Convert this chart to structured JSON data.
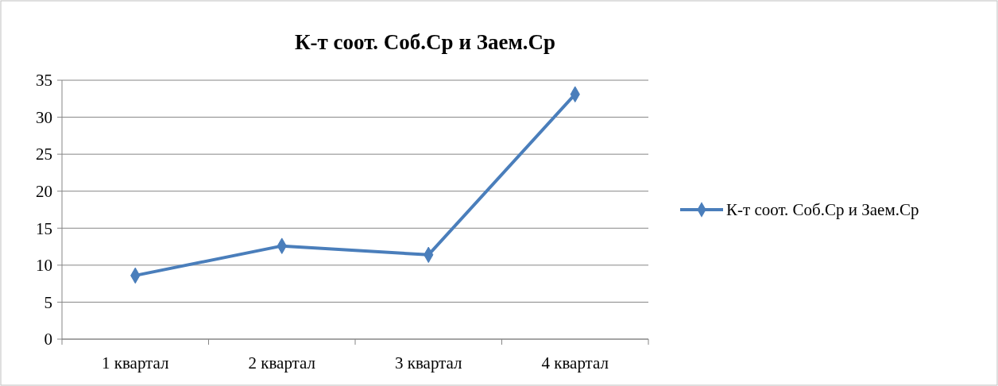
{
  "chart_data": {
    "type": "line",
    "title": "К-т соот. Соб.Ср и Заем.Ср",
    "categories": [
      "1 квартал",
      "2 квартал",
      "3 квартал",
      "4 квартал"
    ],
    "series": [
      {
        "name": "К-т соот. Соб.Ср и Заем.Ср",
        "color": "#4a7ebb",
        "values": [
          8.6,
          12.6,
          11.4,
          33.1
        ]
      }
    ],
    "ylim": [
      0,
      35
    ],
    "yticks": [
      0,
      5,
      10,
      15,
      20,
      25,
      30,
      35
    ],
    "grid": "y",
    "legend": "right",
    "marker": "diamond",
    "line_style": "solid"
  }
}
